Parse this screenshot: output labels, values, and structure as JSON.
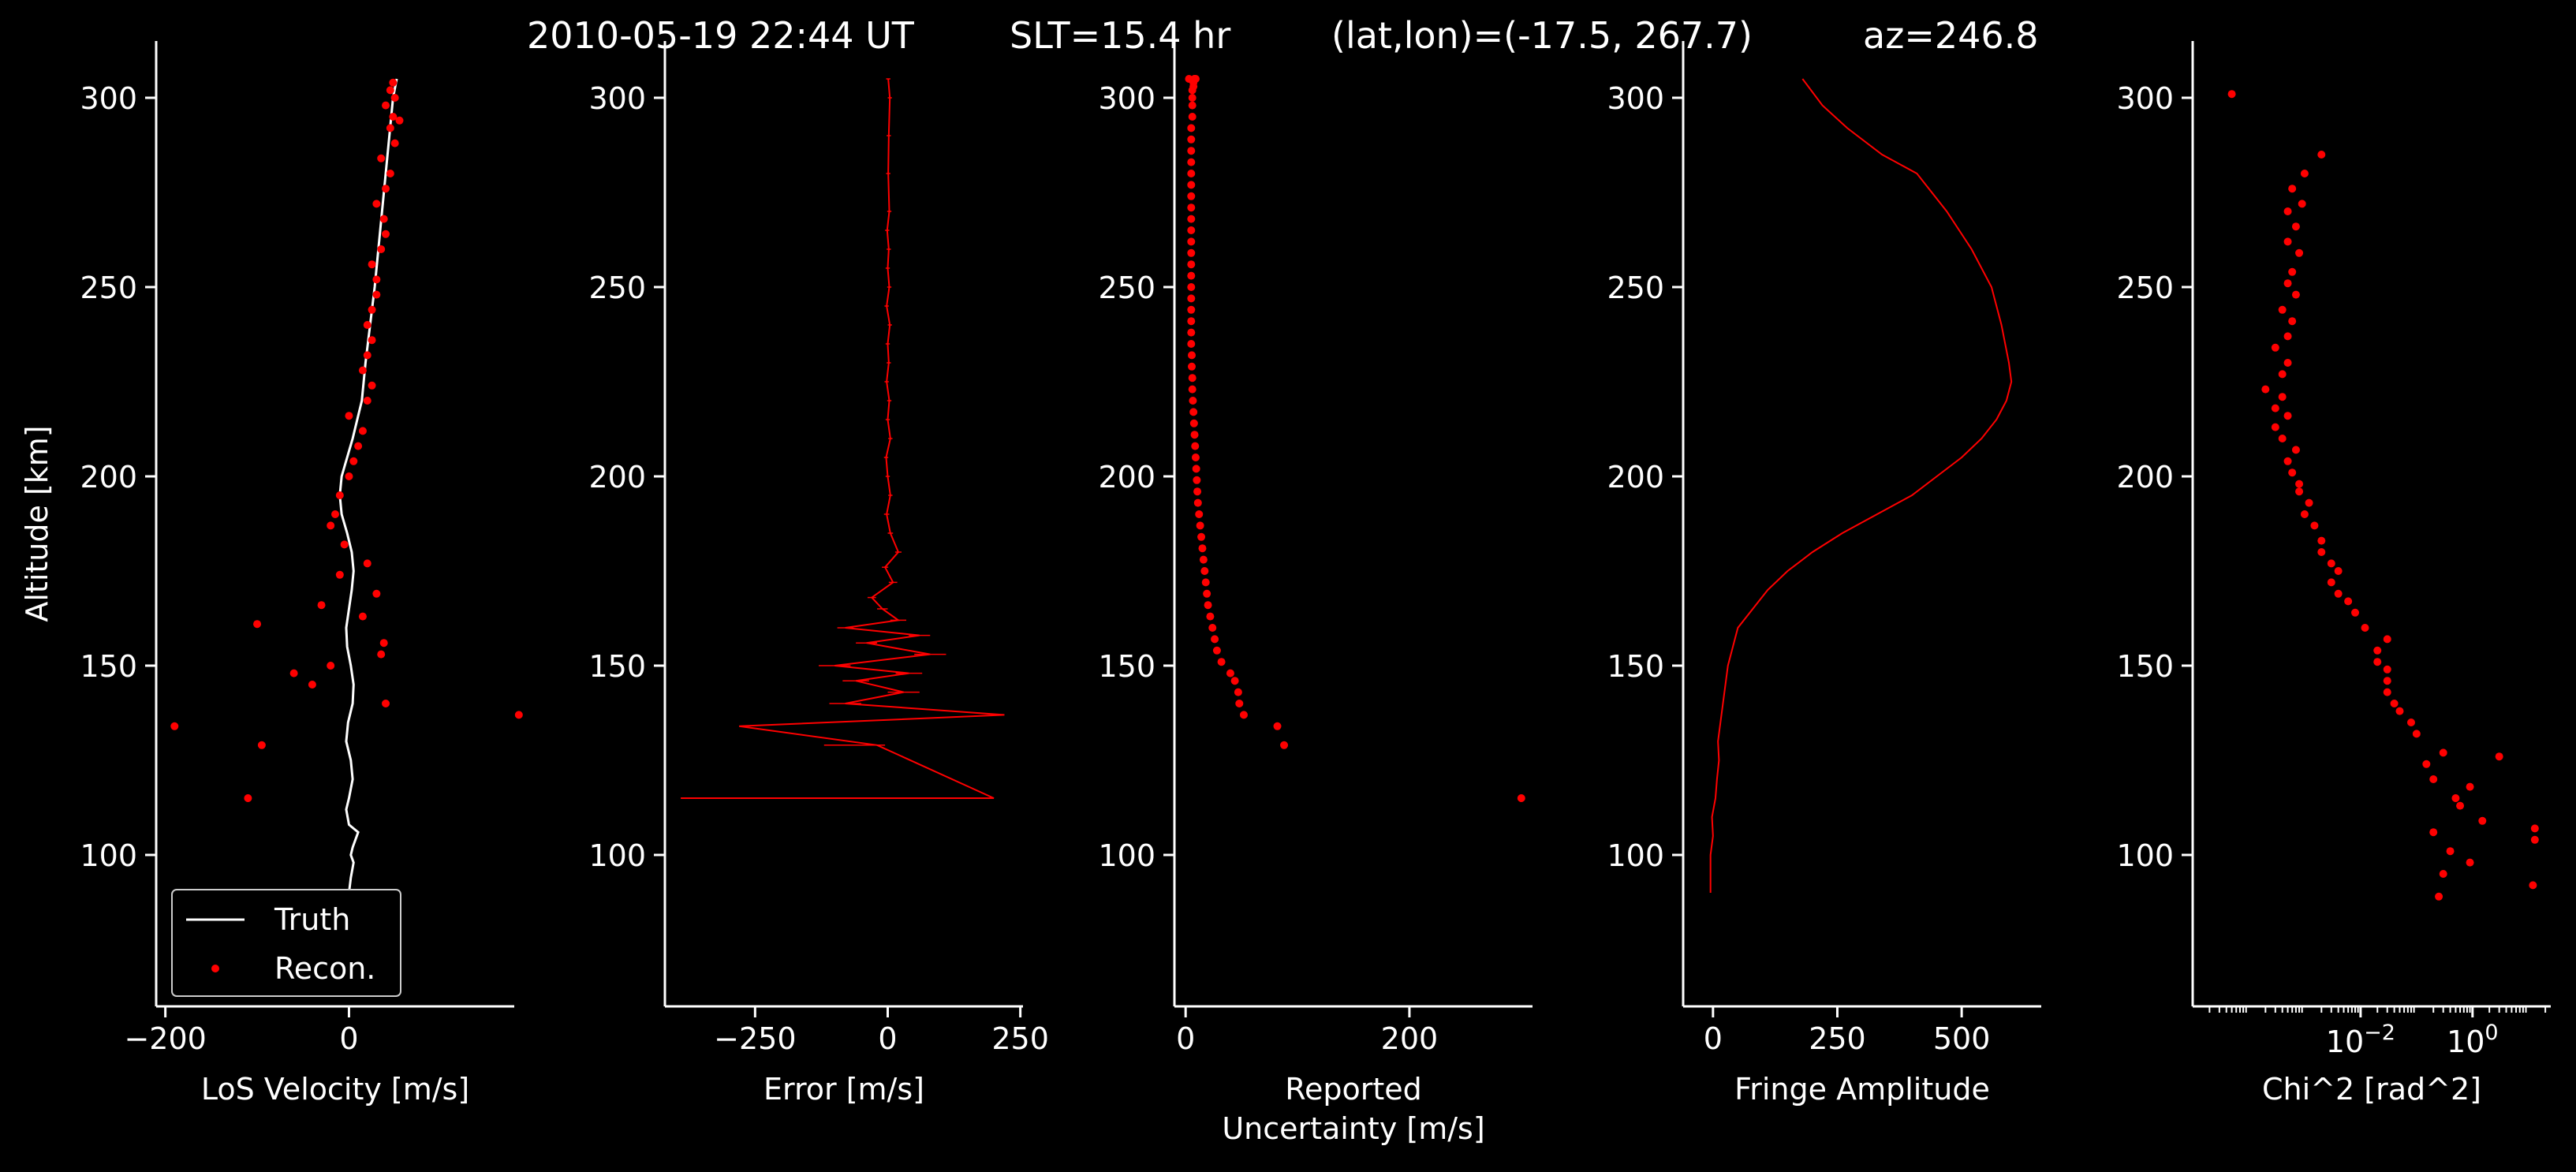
{
  "figure": {
    "title_parts": [
      "2010-05-19 22:44 UT",
      "SLT=15.4 hr",
      "(lat,lon)=(-17.5, 267.7)",
      "az=246.8"
    ],
    "colors": {
      "background": "#000000",
      "axis": "#ffffff",
      "truth": "#ffffff",
      "recon": "#ff0000"
    }
  },
  "chart_data": [
    {
      "type": "line",
      "xlabel": "LoS Velocity [m/s]",
      "ylabel": "Altitude [km]",
      "xlim": [
        -210,
        180
      ],
      "ylim": [
        60,
        315
      ],
      "xticks": [
        -200,
        0
      ],
      "xtick_labels": [
        "−200",
        "0"
      ],
      "yticks": [
        100,
        150,
        200,
        250,
        300
      ],
      "ytick_labels": [
        "100",
        "150",
        "200",
        "250",
        "300"
      ],
      "legend": {
        "position": "lower-left",
        "entries": [
          "Truth",
          "Recon."
        ]
      },
      "series": [
        {
          "name": "Truth",
          "style": "line",
          "x": [
            0,
            2,
            5,
            2,
            4,
            10,
            0,
            -3,
            0,
            4,
            2,
            -3,
            -1,
            4,
            5,
            2,
            -2,
            -3,
            0,
            3,
            5,
            3,
            -2,
            -8,
            -10,
            -8,
            -2,
            4,
            9,
            14,
            18,
            23,
            28,
            32,
            36,
            40,
            44,
            48,
            52
          ],
          "y": [
            90,
            94,
            98,
            100,
            102,
            106,
            108,
            112,
            115,
            120,
            125,
            130,
            135,
            140,
            145,
            150,
            155,
            160,
            165,
            170,
            175,
            180,
            185,
            190,
            195,
            200,
            205,
            210,
            215,
            220,
            230,
            240,
            250,
            260,
            270,
            280,
            290,
            300,
            305
          ]
        },
        {
          "name": "Recon.",
          "style": "points",
          "x": [
            -190,
            185,
            -95,
            -110,
            -60,
            -40,
            40,
            35,
            38,
            -20,
            -100,
            -30,
            15,
            30,
            -10,
            20,
            -5,
            -20,
            -15,
            -10,
            0,
            5,
            10,
            15,
            0,
            20,
            25,
            15,
            20,
            25,
            20,
            25,
            30,
            30,
            25,
            35,
            40,
            38,
            30,
            40,
            45,
            35,
            50,
            45,
            48,
            40,
            50,
            45,
            55,
            48
          ],
          "y": [
            134,
            137,
            129,
            115,
            148,
            145,
            140,
            153,
            156,
            150,
            161,
            166,
            163,
            169,
            174,
            177,
            182,
            187,
            190,
            195,
            200,
            204,
            208,
            212,
            216,
            220,
            224,
            228,
            232,
            236,
            240,
            244,
            248,
            252,
            256,
            260,
            264,
            268,
            272,
            276,
            280,
            284,
            288,
            292,
            295,
            298,
            300,
            302,
            294,
            304
          ]
        }
      ]
    },
    {
      "type": "line",
      "xlabel": "Error [m/s]",
      "xlim": [
        -420,
        255
      ],
      "ylim": [
        60,
        315
      ],
      "xticks": [
        -250,
        0,
        250
      ],
      "xtick_labels": [
        "−250",
        "0",
        "250"
      ],
      "yticks": [
        100,
        150,
        200,
        250,
        300
      ],
      "ytick_labels": [
        "100",
        "150",
        "200",
        "250",
        "300"
      ],
      "series": [
        {
          "name": "",
          "style": "errorline",
          "x": [
            -390,
            200,
            -20,
            -280,
            220,
            -80,
            30,
            -60,
            40,
            -100,
            80,
            -40,
            60,
            -80,
            20,
            -10,
            -30,
            10,
            -5,
            20,
            5,
            -2,
            5,
            0,
            -3,
            5,
            0,
            3,
            -2,
            2,
            0,
            4,
            -2,
            3,
            0,
            2,
            -1,
            3,
            1,
            2,
            4,
            1
          ],
          "y": [
            115,
            115,
            129,
            134,
            137,
            140,
            143,
            146,
            148,
            150,
            153,
            156,
            158,
            160,
            162,
            165,
            168,
            172,
            176,
            180,
            185,
            190,
            195,
            200,
            205,
            210,
            215,
            220,
            225,
            230,
            235,
            240,
            245,
            250,
            255,
            260,
            265,
            270,
            280,
            290,
            300,
            305
          ],
          "err": [
            0,
            0,
            0,
            0,
            0,
            30,
            30,
            25,
            25,
            30,
            30,
            20,
            20,
            15,
            15,
            10,
            8,
            8,
            6,
            6,
            5,
            5,
            4,
            4,
            4,
            4,
            4,
            4,
            4,
            4,
            4,
            4,
            4,
            4,
            4,
            4,
            4,
            4,
            4,
            4,
            4,
            4
          ]
        }
      ]
    },
    {
      "type": "scatter",
      "xlabel_lines": [
        "Reported",
        "Uncertainty [m/s]"
      ],
      "xlim": [
        -10,
        310
      ],
      "ylim": [
        60,
        315
      ],
      "xticks": [
        0,
        200
      ],
      "xtick_labels": [
        "0",
        "200"
      ],
      "yticks": [
        100,
        150,
        200,
        250,
        300
      ],
      "ytick_labels": [
        "100",
        "150",
        "200",
        "250",
        "300"
      ],
      "series": [
        {
          "name": "",
          "style": "points",
          "x": [
            300,
            88,
            82,
            52,
            48,
            47,
            44,
            40,
            32,
            28,
            26,
            24,
            22,
            20,
            19,
            18,
            17,
            16,
            15,
            14,
            13,
            12,
            11,
            10.5,
            10,
            9.5,
            9,
            8.5,
            8,
            7.5,
            7,
            6.5,
            6,
            6,
            5.5,
            5.5,
            5,
            5,
            5,
            5,
            5,
            5,
            5,
            5,
            5,
            5,
            5,
            5,
            5,
            5,
            5,
            5,
            5,
            5,
            5,
            5,
            6,
            6,
            6,
            6,
            7,
            7,
            8,
            8,
            9,
            3
          ],
          "y": [
            115,
            129,
            134,
            137,
            140,
            143,
            146,
            148,
            151,
            154,
            157,
            160,
            163,
            166,
            169,
            172,
            175,
            178,
            181,
            184,
            187,
            190,
            193,
            196,
            199,
            202,
            205,
            208,
            211,
            214,
            217,
            220,
            223,
            226,
            229,
            232,
            235,
            238,
            241,
            244,
            247,
            250,
            253,
            256,
            259,
            262,
            265,
            268,
            271,
            274,
            277,
            280,
            283,
            286,
            289,
            292,
            295,
            298,
            300,
            302,
            303,
            304,
            305,
            305,
            305,
            305
          ]
        }
      ]
    },
    {
      "type": "line",
      "xlabel": "Fringe Amplitude",
      "xlim": [
        -60,
        660
      ],
      "ylim": [
        60,
        315
      ],
      "xticks": [
        0,
        250,
        500
      ],
      "xtick_labels": [
        "0",
        "250",
        "500"
      ],
      "yticks": [
        100,
        150,
        200,
        250,
        300
      ],
      "ytick_labels": [
        "100",
        "150",
        "200",
        "250",
        "300"
      ],
      "series": [
        {
          "name": "",
          "style": "line",
          "x": [
            -5,
            -5,
            0,
            -2,
            5,
            8,
            12,
            10,
            15,
            20,
            25,
            30,
            40,
            50,
            80,
            110,
            150,
            200,
            260,
            330,
            400,
            450,
            500,
            540,
            570,
            590,
            600,
            595,
            580,
            560,
            520,
            470,
            410,
            340,
            270,
            220,
            180
          ],
          "y": [
            90,
            100,
            105,
            110,
            115,
            120,
            125,
            130,
            135,
            140,
            145,
            150,
            155,
            160,
            165,
            170,
            175,
            180,
            185,
            190,
            195,
            200,
            205,
            210,
            215,
            220,
            225,
            230,
            240,
            250,
            260,
            270,
            280,
            285,
            292,
            298,
            305
          ]
        }
      ]
    },
    {
      "type": "scatter",
      "xlabel": "Chi^2 [rad^2]",
      "xscale": "log",
      "xlim": [
        1e-05,
        25
      ],
      "ylim": [
        60,
        315
      ],
      "xticks": [
        0.01,
        1
      ],
      "xtick_labels_base": [
        "10",
        "10"
      ],
      "xtick_labels_exp": [
        "−2",
        "0"
      ],
      "yticks": [
        100,
        150,
        200,
        250,
        300
      ],
      "ytick_labels": [
        "100",
        "150",
        "200",
        "250",
        "300"
      ],
      "series": [
        {
          "name": "",
          "style": "points",
          "x": [
            0.25,
            12,
            0.3,
            0.9,
            0.4,
            0.2,
            3,
            13,
            13,
            1.5,
            0.6,
            0.5,
            0.9,
            0.2,
            0.15,
            0.3,
            0.1,
            0.08,
            0.05,
            0.04,
            0.03,
            0.03,
            0.03,
            0.02,
            0.02,
            0.03,
            0.012,
            0.008,
            0.006,
            0.004,
            0.003,
            0.004,
            0.003,
            0.002,
            0.002,
            0.0015,
            0.001,
            0.0012,
            0.0008,
            0.0008,
            0.0006,
            0.0005,
            0.0007,
            0.0004,
            0.0003,
            0.0005,
            0.0003,
            0.0004,
            0.0002,
            0.0004,
            0.0005,
            0.0003,
            0.0005,
            0.0006,
            0.0004,
            0.0007,
            0.0005,
            0.0006,
            0.0008,
            0.0005,
            0.0007,
            0.0005,
            0.0009,
            0.0006,
            0.001,
            0.002,
            5e-05
          ],
          "y": [
            89,
            92,
            95,
            98,
            101,
            106,
            126,
            104,
            107,
            109,
            113,
            115,
            118,
            120,
            124,
            127,
            132,
            135,
            138,
            140,
            143,
            146,
            149,
            151,
            154,
            157,
            160,
            164,
            167,
            169,
            172,
            175,
            177,
            180,
            183,
            187,
            190,
            193,
            196,
            198,
            201,
            204,
            207,
            210,
            213,
            216,
            218,
            221,
            223,
            227,
            230,
            234,
            237,
            241,
            244,
            248,
            251,
            254,
            259,
            262,
            266,
            270,
            272,
            276,
            280,
            285,
            301
          ]
        }
      ]
    }
  ]
}
